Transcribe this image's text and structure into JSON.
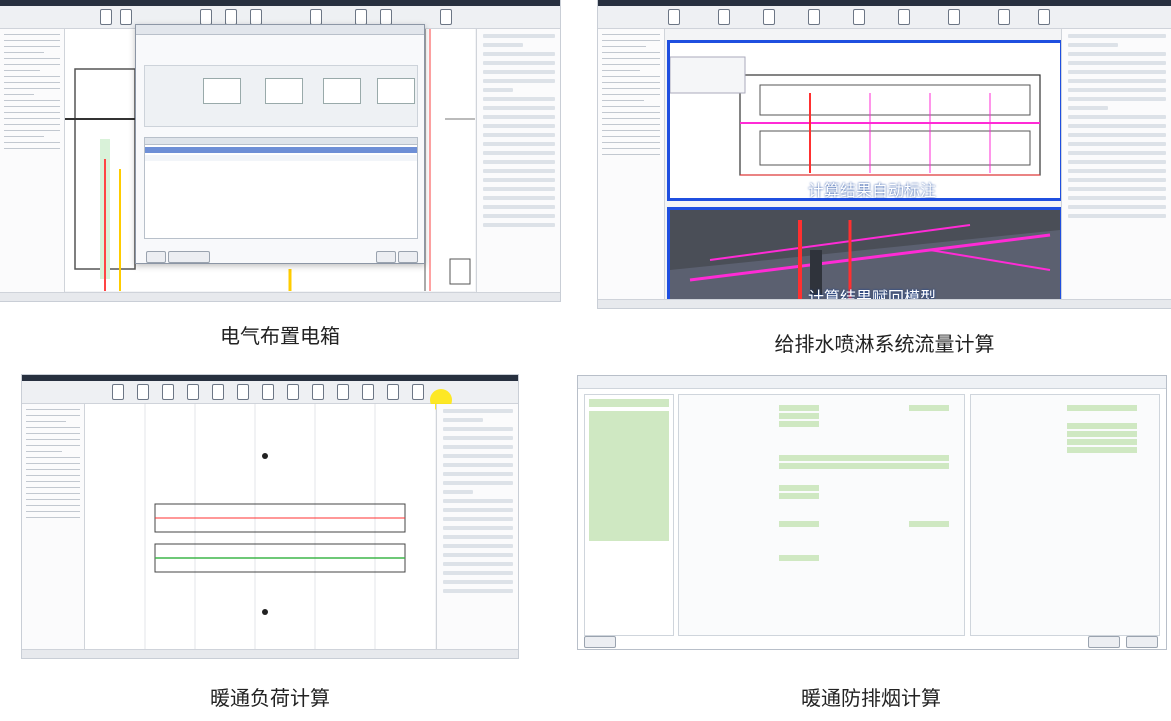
{
  "panels": [
    {
      "caption": "电气布置电箱"
    },
    {
      "caption": "给排水喷淋系统流量计算",
      "overlay_top": "计算结果自动标注",
      "overlay_bottom": "计算结果赋回模型"
    },
    {
      "caption": "暖通负荷计算"
    },
    {
      "caption": "暖通防排烟计算"
    }
  ],
  "colors": {
    "accent_blue": "#1f4fe0",
    "pipe_magenta": "#ff2bd6",
    "pipe_red": "#ff3030",
    "accent_green": "#8fcf6a"
  }
}
